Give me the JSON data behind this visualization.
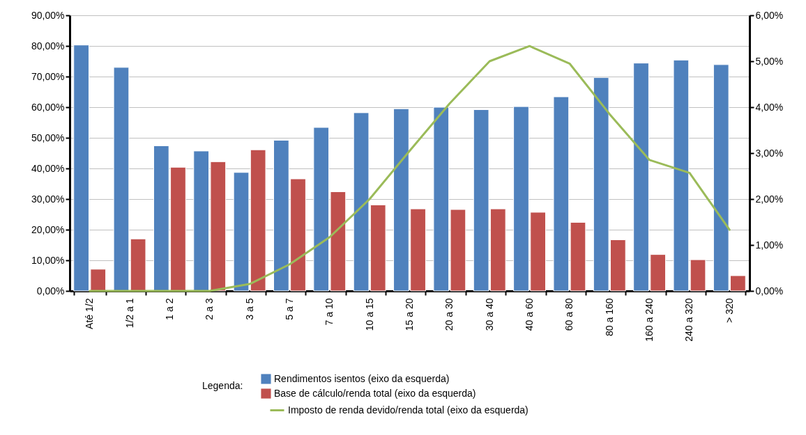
{
  "chart_data": {
    "type": "bar",
    "categories": [
      "Até 1/2",
      "1/2 a 1",
      "1 a 2",
      "2 a 3",
      "3 a 5",
      "5 a 7",
      "7 a 10",
      "10 a 15",
      "15 a 20",
      "20 a 30",
      "30 a 40",
      "40 a 60",
      "60 a 80",
      "80 a 160",
      "160 a 240",
      "240 a 320",
      "> 320"
    ],
    "series": [
      {
        "name": "Rendimentos isentos (eixo da esquerda)",
        "color": "#4f81bd",
        "values": [
          80.3,
          73.0,
          47.4,
          45.7,
          38.7,
          49.2,
          53.4,
          58.2,
          59.5,
          60.0,
          59.2,
          60.2,
          63.4,
          69.7,
          74.4,
          75.4,
          73.9
        ]
      },
      {
        "name": "Base de cálculo/renda total (eixo da esquerda)",
        "color": "#c0504d",
        "values": [
          7.1,
          17.0,
          40.4,
          42.2,
          46.1,
          36.6,
          32.4,
          28.1,
          26.8,
          26.6,
          26.8,
          25.7,
          22.4,
          16.7,
          11.9,
          10.2,
          5.0
        ]
      },
      {
        "name": "Imposto de renda devido/renda total (eixo da esquerda)",
        "color": "#9bbb59",
        "type": "line",
        "axis": "y2",
        "values": [
          0,
          0,
          0,
          0,
          0.15,
          0.58,
          1.17,
          2.0,
          3.05,
          4.08,
          5.0,
          5.33,
          4.95,
          3.85,
          2.85,
          2.57,
          1.33
        ]
      }
    ],
    "ylim": [
      0,
      90
    ],
    "yticks": [
      {
        "value": 0,
        "label": "0,00%"
      },
      {
        "value": 10,
        "label": "10,00%"
      },
      {
        "value": 20,
        "label": "20,00%"
      },
      {
        "value": 30,
        "label": "30,00%"
      },
      {
        "value": 40,
        "label": "40,00%"
      },
      {
        "value": 50,
        "label": "50,00%"
      },
      {
        "value": 60,
        "label": "60,00%"
      },
      {
        "value": 70,
        "label": "70,00%"
      },
      {
        "value": 80,
        "label": "80,00%"
      },
      {
        "value": 90,
        "label": "90,00%"
      }
    ],
    "y2lim": [
      0,
      6
    ],
    "y2ticks": [
      {
        "value": 0,
        "label": "0,00%"
      },
      {
        "value": 1,
        "label": "1,00%"
      },
      {
        "value": 2,
        "label": "2,00%"
      },
      {
        "value": 3,
        "label": "3,00%"
      },
      {
        "value": 4,
        "label": "4,00%"
      },
      {
        "value": 5,
        "label": "5,00%"
      },
      {
        "value": 6,
        "label": "6,00%"
      }
    ],
    "grid": "y",
    "legend": "bottom",
    "legend_title": "Legenda:"
  }
}
